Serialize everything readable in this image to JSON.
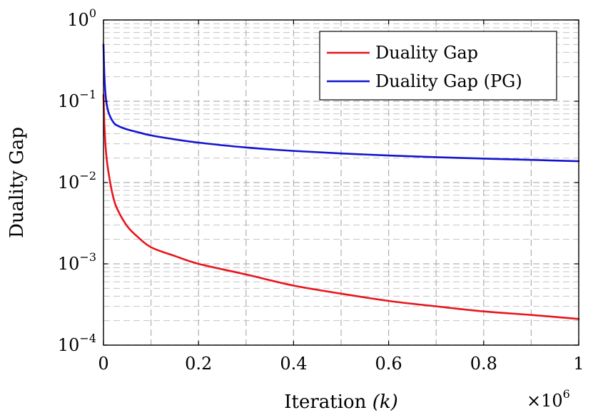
{
  "chart_data": {
    "type": "line",
    "title": "",
    "xlabel_text": "Iteration ",
    "xlabel_var": "(k)",
    "ylabel": "Duality Gap",
    "x_multiplier": {
      "base": "×10",
      "exponent": "6"
    },
    "x_scale": 1000000,
    "xlim": [
      0,
      1
    ],
    "ylim": [
      0.0001,
      1
    ],
    "yscale": "log",
    "grid": true,
    "legend_position": "top-right",
    "x_ticks": [
      {
        "value": 0,
        "label": "0"
      },
      {
        "value": 0.2,
        "label": "0.2"
      },
      {
        "value": 0.4,
        "label": "0.4"
      },
      {
        "value": 0.6,
        "label": "0.6"
      },
      {
        "value": 0.8,
        "label": "0.8"
      },
      {
        "value": 1,
        "label": "1"
      }
    ],
    "y_ticks": [
      {
        "value": 1,
        "base": "10",
        "exponent": "0"
      },
      {
        "value": 0.1,
        "base": "10",
        "exponent": "−1"
      },
      {
        "value": 0.01,
        "base": "10",
        "exponent": "−2"
      },
      {
        "value": 0.001,
        "base": "10",
        "exponent": "−3"
      },
      {
        "value": 0.0001,
        "base": "10",
        "exponent": "−4"
      }
    ],
    "series": [
      {
        "name": "Duality Gap",
        "color": "#e8141c",
        "x": [
          0,
          0.002,
          0.005,
          0.01,
          0.02,
          0.03,
          0.05,
          0.07,
          0.1,
          0.15,
          0.2,
          0.3,
          0.4,
          0.5,
          0.6,
          0.7,
          0.8,
          0.9,
          1.0
        ],
        "y": [
          0.12,
          0.05,
          0.025,
          0.014,
          0.0068,
          0.0046,
          0.0029,
          0.0022,
          0.0016,
          0.00125,
          0.001,
          0.00074,
          0.00054,
          0.00043,
          0.00035,
          0.0003,
          0.00026,
          0.000235,
          0.00021
        ]
      },
      {
        "name": "Duality Gap (PG)",
        "color": "#1414d0",
        "x": [
          0,
          0.002,
          0.005,
          0.01,
          0.02,
          0.03,
          0.05,
          0.07,
          0.1,
          0.15,
          0.2,
          0.3,
          0.4,
          0.5,
          0.6,
          0.7,
          0.8,
          0.9,
          1.0
        ],
        "y": [
          0.5,
          0.2,
          0.11,
          0.075,
          0.056,
          0.05,
          0.045,
          0.042,
          0.038,
          0.034,
          0.031,
          0.027,
          0.0245,
          0.0228,
          0.0215,
          0.0205,
          0.0197,
          0.019,
          0.0183
        ]
      }
    ]
  }
}
